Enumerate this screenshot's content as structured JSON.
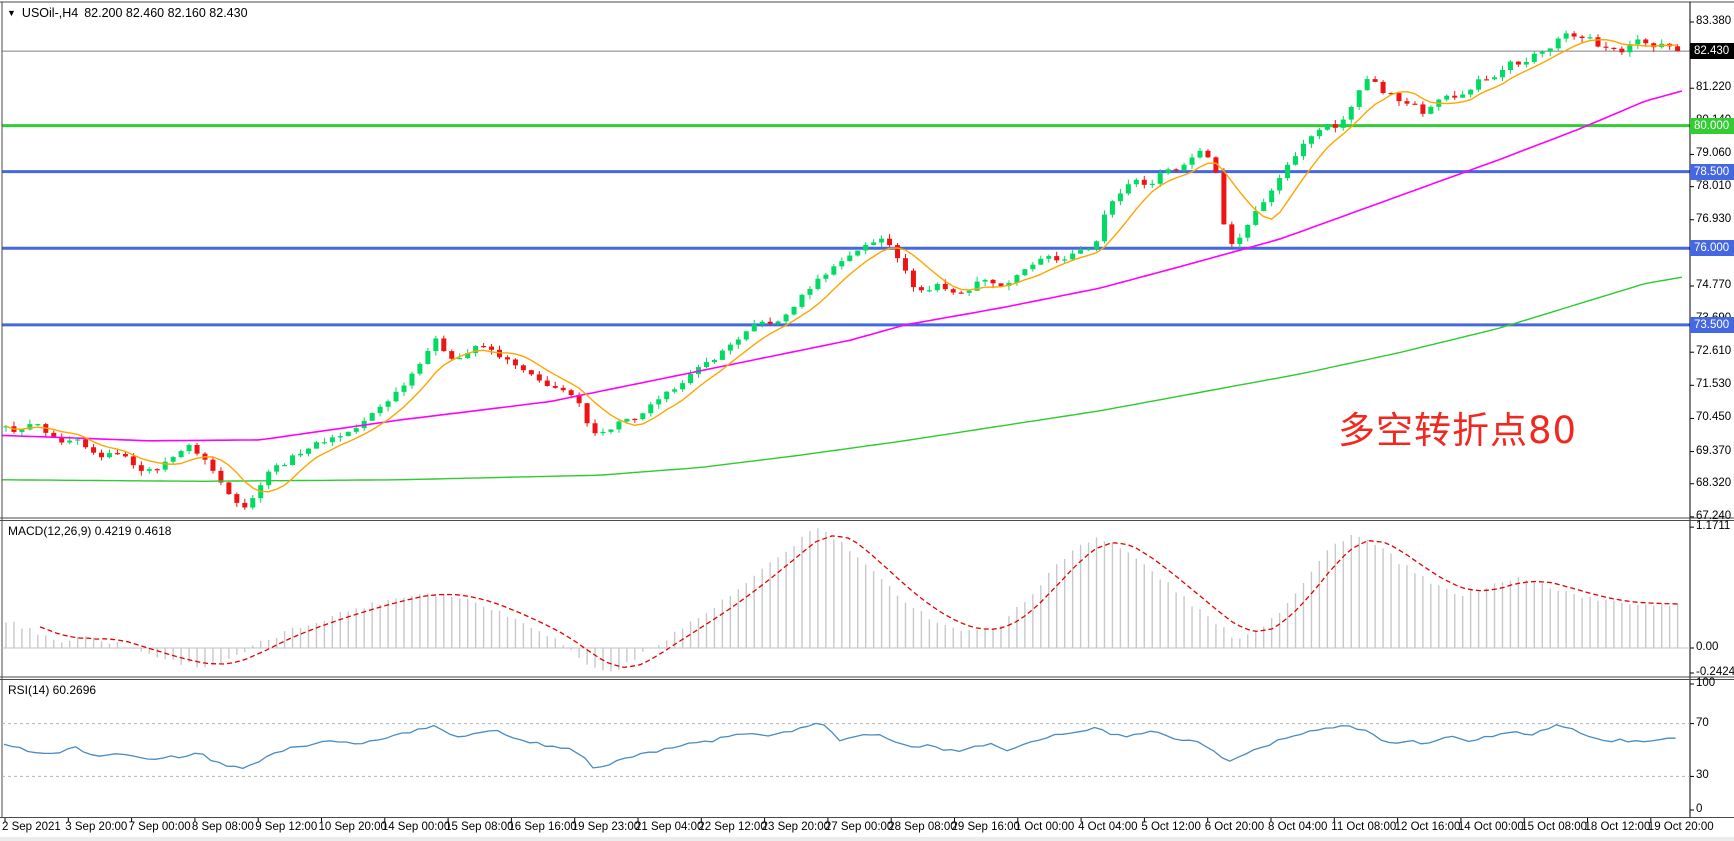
{
  "header": {
    "dropdown_icon": "▼",
    "title": "USOil-,H4",
    "ohlc": "82.200 82.460 82.160 82.430"
  },
  "annotation": {
    "text": "多空转折点80"
  },
  "chart_data": {
    "type": "candlestick",
    "symbol": "USOil",
    "timeframe": "H4",
    "ohlc_header": {
      "open": "82.200",
      "high": "82.460",
      "low": "82.160",
      "close": "82.430"
    },
    "price_axis_ticks": [
      "83.380",
      "82.300",
      "81.220",
      "80.140",
      "79.060",
      "78.010",
      "76.930",
      "75.850",
      "74.770",
      "73.690",
      "72.610",
      "71.530",
      "70.450",
      "69.370",
      "68.320",
      "67.240"
    ],
    "current_price": {
      "label": "82.430",
      "value": 82.43
    },
    "hlines": [
      {
        "label": "80.000",
        "value": 80.0,
        "color": "#33cc33"
      },
      {
        "label": "78.500",
        "value": 78.5,
        "color": "#4667e2"
      },
      {
        "label": "76.000",
        "value": 76.0,
        "color": "#4667e2"
      },
      {
        "label": "73.500",
        "value": 73.5,
        "color": "#4667e2"
      }
    ],
    "time_labels": [
      "2 Sep 2021",
      "3 Sep 20:00",
      "7 Sep 00:00",
      "8 Sep 08:00",
      "9 Sep 12:00",
      "10 Sep 20:00",
      "14 Sep 00:00",
      "15 Sep 08:00",
      "16 Sep 16:00",
      "19 Sep 23:00",
      "21 Sep 04:00",
      "22 Sep 12:00",
      "23 Sep 20:00",
      "27 Sep 00:00",
      "28 Sep 08:00",
      "29 Sep 16:00",
      "1 Oct 00:00",
      "4 Oct 04:00",
      "5 Oct 12:00",
      "6 Oct 20:00",
      "8 Oct 04:00",
      "11 Oct 08:00",
      "12 Oct 16:00",
      "14 Oct 00:00",
      "15 Oct 08:00",
      "18 Oct 12:00",
      "19 Oct 20:00"
    ],
    "price_path": [
      [
        6,
        70.15
      ],
      [
        20,
        70.0
      ],
      [
        34,
        70.35
      ],
      [
        48,
        69.9
      ],
      [
        62,
        69.6
      ],
      [
        76,
        69.75
      ],
      [
        90,
        69.35
      ],
      [
        104,
        69.2
      ],
      [
        118,
        69.35
      ],
      [
        132,
        69.0
      ],
      [
        146,
        68.7
      ],
      [
        160,
        68.85
      ],
      [
        175,
        69.3
      ],
      [
        190,
        69.55
      ],
      [
        205,
        69.1
      ],
      [
        220,
        68.4
      ],
      [
        235,
        67.8
      ],
      [
        248,
        67.5
      ],
      [
        258,
        68.2
      ],
      [
        270,
        68.8
      ],
      [
        285,
        69.0
      ],
      [
        300,
        69.35
      ],
      [
        315,
        69.6
      ],
      [
        330,
        69.8
      ],
      [
        345,
        69.95
      ],
      [
        360,
        70.2
      ],
      [
        375,
        70.7
      ],
      [
        390,
        71.1
      ],
      [
        402,
        71.5
      ],
      [
        414,
        72.0
      ],
      [
        426,
        72.6
      ],
      [
        436,
        73.0
      ],
      [
        446,
        72.6
      ],
      [
        456,
        72.35
      ],
      [
        468,
        72.6
      ],
      [
        480,
        72.85
      ],
      [
        492,
        72.65
      ],
      [
        504,
        72.4
      ],
      [
        516,
        72.15
      ],
      [
        528,
        71.9
      ],
      [
        540,
        71.65
      ],
      [
        552,
        71.5
      ],
      [
        564,
        71.3
      ],
      [
        576,
        71.1
      ],
      [
        588,
        70.3
      ],
      [
        598,
        69.9
      ],
      [
        610,
        70.1
      ],
      [
        622,
        70.4
      ],
      [
        634,
        70.35
      ],
      [
        646,
        70.75
      ],
      [
        658,
        71.0
      ],
      [
        670,
        71.35
      ],
      [
        682,
        71.65
      ],
      [
        694,
        71.95
      ],
      [
        706,
        72.25
      ],
      [
        718,
        72.5
      ],
      [
        730,
        72.85
      ],
      [
        742,
        73.15
      ],
      [
        754,
        73.45
      ],
      [
        766,
        73.65
      ],
      [
        776,
        73.5
      ],
      [
        788,
        73.9
      ],
      [
        800,
        74.35
      ],
      [
        812,
        74.8
      ],
      [
        824,
        75.15
      ],
      [
        836,
        75.45
      ],
      [
        848,
        75.75
      ],
      [
        860,
        76.0
      ],
      [
        872,
        76.15
      ],
      [
        882,
        76.35
      ],
      [
        892,
        76.1
      ],
      [
        904,
        75.3
      ],
      [
        914,
        74.75
      ],
      [
        926,
        74.55
      ],
      [
        938,
        74.85
      ],
      [
        950,
        74.6
      ],
      [
        962,
        74.5
      ],
      [
        974,
        74.8
      ],
      [
        986,
        75.05
      ],
      [
        998,
        74.75
      ],
      [
        1010,
        74.9
      ],
      [
        1022,
        75.2
      ],
      [
        1034,
        75.5
      ],
      [
        1046,
        75.7
      ],
      [
        1058,
        75.6
      ],
      [
        1070,
        75.75
      ],
      [
        1082,
        75.9
      ],
      [
        1094,
        76.1
      ],
      [
        1102,
        76.6
      ],
      [
        1108,
        77.9
      ],
      [
        1114,
        77.5
      ],
      [
        1122,
        77.85
      ],
      [
        1130,
        78.1
      ],
      [
        1138,
        78.3
      ],
      [
        1146,
        78.0
      ],
      [
        1154,
        78.2
      ],
      [
        1162,
        78.45
      ],
      [
        1170,
        78.7
      ],
      [
        1178,
        78.5
      ],
      [
        1186,
        78.8
      ],
      [
        1194,
        79.05
      ],
      [
        1202,
        79.25
      ],
      [
        1210,
        78.9
      ],
      [
        1218,
        78.35
      ],
      [
        1226,
        76.3
      ],
      [
        1234,
        76.05
      ],
      [
        1242,
        76.5
      ],
      [
        1250,
        76.9
      ],
      [
        1258,
        77.3
      ],
      [
        1266,
        77.6
      ],
      [
        1274,
        78.1
      ],
      [
        1282,
        78.45
      ],
      [
        1290,
        78.8
      ],
      [
        1298,
        79.15
      ],
      [
        1306,
        79.5
      ],
      [
        1314,
        79.75
      ],
      [
        1322,
        80.0
      ],
      [
        1330,
        80.15
      ],
      [
        1338,
        79.9
      ],
      [
        1346,
        80.3
      ],
      [
        1354,
        80.8
      ],
      [
        1362,
        81.3
      ],
      [
        1370,
        81.65
      ],
      [
        1378,
        81.35
      ],
      [
        1386,
        80.9
      ],
      [
        1394,
        81.1
      ],
      [
        1402,
        80.65
      ],
      [
        1410,
        80.85
      ],
      [
        1418,
        80.5
      ],
      [
        1426,
        80.35
      ],
      [
        1434,
        80.7
      ],
      [
        1442,
        80.95
      ],
      [
        1450,
        81.1
      ],
      [
        1458,
        80.9
      ],
      [
        1466,
        81.05
      ],
      [
        1474,
        81.3
      ],
      [
        1482,
        81.6
      ],
      [
        1490,
        81.45
      ],
      [
        1498,
        81.7
      ],
      [
        1506,
        81.95
      ],
      [
        1514,
        82.1
      ],
      [
        1522,
        81.9
      ],
      [
        1530,
        82.2
      ],
      [
        1538,
        82.45
      ],
      [
        1546,
        82.3
      ],
      [
        1554,
        82.6
      ],
      [
        1562,
        82.95
      ],
      [
        1570,
        83.05
      ],
      [
        1578,
        82.8
      ],
      [
        1586,
        83.0
      ],
      [
        1594,
        82.7
      ],
      [
        1602,
        82.45
      ],
      [
        1610,
        82.6
      ],
      [
        1618,
        82.35
      ],
      [
        1630,
        82.6
      ],
      [
        1640,
        82.9
      ],
      [
        1648,
        82.6
      ],
      [
        1656,
        82.5
      ],
      [
        1664,
        82.65
      ],
      [
        1672,
        82.5
      ],
      [
        1680,
        82.43
      ]
    ],
    "ma_mid_path": [
      [
        0,
        69.9
      ],
      [
        150,
        69.72
      ],
      [
        260,
        69.75
      ],
      [
        400,
        70.4
      ],
      [
        550,
        71.0
      ],
      [
        700,
        72.0
      ],
      [
        850,
        73.0
      ],
      [
        905,
        73.5
      ],
      [
        1000,
        74.05
      ],
      [
        1100,
        74.7
      ],
      [
        1180,
        75.4
      ],
      [
        1280,
        76.3
      ],
      [
        1390,
        77.6
      ],
      [
        1500,
        78.9
      ],
      [
        1580,
        79.9
      ],
      [
        1645,
        80.8
      ],
      [
        1690,
        81.2
      ]
    ],
    "ma_slow_path": [
      [
        0,
        68.45
      ],
      [
        200,
        68.4
      ],
      [
        400,
        68.45
      ],
      [
        600,
        68.6
      ],
      [
        700,
        68.85
      ],
      [
        800,
        69.25
      ],
      [
        900,
        69.7
      ],
      [
        1000,
        70.2
      ],
      [
        1100,
        70.7
      ],
      [
        1200,
        71.3
      ],
      [
        1300,
        71.9
      ],
      [
        1400,
        72.6
      ],
      [
        1500,
        73.4
      ],
      [
        1580,
        74.2
      ],
      [
        1645,
        74.85
      ],
      [
        1690,
        75.1
      ]
    ],
    "macd": {
      "label": "MACD(12,26,9) 0.4219 0.4618",
      "macd_value": 0.4219,
      "signal_value": 0.4618,
      "axis": [
        {
          "label": "1.1711",
          "v": 1.1711
        },
        {
          "label": "0.00",
          "v": 0
        },
        {
          "label": "-0.2424",
          "v": -0.2424
        }
      ],
      "path": [
        [
          0,
          0.28
        ],
        [
          30,
          0.18
        ],
        [
          60,
          0.06
        ],
        [
          90,
          0.12
        ],
        [
          120,
          0.03
        ],
        [
          150,
          -0.06
        ],
        [
          175,
          -0.13
        ],
        [
          205,
          -0.18
        ],
        [
          230,
          -0.12
        ],
        [
          255,
          0.02
        ],
        [
          285,
          0.15
        ],
        [
          320,
          0.27
        ],
        [
          355,
          0.38
        ],
        [
          390,
          0.47
        ],
        [
          425,
          0.54
        ],
        [
          455,
          0.5
        ],
        [
          485,
          0.42
        ],
        [
          510,
          0.3
        ],
        [
          540,
          0.18
        ],
        [
          565,
          0.02
        ],
        [
          585,
          -0.14
        ],
        [
          605,
          -0.24
        ],
        [
          625,
          -0.17
        ],
        [
          645,
          -0.04
        ],
        [
          670,
          0.12
        ],
        [
          700,
          0.3
        ],
        [
          730,
          0.5
        ],
        [
          760,
          0.73
        ],
        [
          790,
          0.97
        ],
        [
          815,
          1.17
        ],
        [
          832,
          1.08
        ],
        [
          852,
          0.93
        ],
        [
          876,
          0.7
        ],
        [
          900,
          0.5
        ],
        [
          925,
          0.32
        ],
        [
          950,
          0.2
        ],
        [
          975,
          0.15
        ],
        [
          1000,
          0.23
        ],
        [
          1025,
          0.45
        ],
        [
          1050,
          0.73
        ],
        [
          1075,
          0.97
        ],
        [
          1095,
          1.08
        ],
        [
          1115,
          1.0
        ],
        [
          1140,
          0.84
        ],
        [
          1165,
          0.64
        ],
        [
          1190,
          0.44
        ],
        [
          1215,
          0.24
        ],
        [
          1235,
          0.1
        ],
        [
          1255,
          0.16
        ],
        [
          1280,
          0.36
        ],
        [
          1305,
          0.66
        ],
        [
          1330,
          0.97
        ],
        [
          1350,
          1.1
        ],
        [
          1368,
          1.04
        ],
        [
          1390,
          0.9
        ],
        [
          1415,
          0.72
        ],
        [
          1440,
          0.58
        ],
        [
          1465,
          0.52
        ],
        [
          1490,
          0.6
        ],
        [
          1515,
          0.68
        ],
        [
          1540,
          0.62
        ],
        [
          1565,
          0.55
        ],
        [
          1590,
          0.48
        ],
        [
          1615,
          0.44
        ],
        [
          1645,
          0.43
        ],
        [
          1690,
          0.42
        ]
      ]
    },
    "rsi": {
      "label": "RSI(14) 60.2696",
      "value": 60.2696,
      "levels": [
        70,
        30
      ],
      "axis": [
        {
          "label": "100",
          "v": 100
        },
        {
          "label": "70",
          "v": 70
        },
        {
          "label": "30",
          "v": 30
        },
        {
          "label": "0",
          "v": 0
        }
      ],
      "path": [
        [
          0,
          54
        ],
        [
          25,
          50
        ],
        [
          50,
          47
        ],
        [
          75,
          52
        ],
        [
          100,
          45
        ],
        [
          125,
          48
        ],
        [
          150,
          42
        ],
        [
          175,
          45
        ],
        [
          200,
          47
        ],
        [
          225,
          38
        ],
        [
          245,
          35
        ],
        [
          265,
          45
        ],
        [
          290,
          52
        ],
        [
          315,
          55
        ],
        [
          340,
          57
        ],
        [
          365,
          55
        ],
        [
          390,
          60
        ],
        [
          415,
          65
        ],
        [
          435,
          69
        ],
        [
          455,
          60
        ],
        [
          475,
          63
        ],
        [
          495,
          65
        ],
        [
          515,
          58
        ],
        [
          535,
          55
        ],
        [
          555,
          52
        ],
        [
          575,
          50
        ],
        [
          595,
          36
        ],
        [
          610,
          40
        ],
        [
          630,
          45
        ],
        [
          650,
          48
        ],
        [
          670,
          52
        ],
        [
          690,
          55
        ],
        [
          710,
          57
        ],
        [
          730,
          60
        ],
        [
          750,
          62
        ],
        [
          770,
          60
        ],
        [
          790,
          64
        ],
        [
          815,
          71
        ],
        [
          825,
          68
        ],
        [
          840,
          58
        ],
        [
          855,
          60
        ],
        [
          870,
          62
        ],
        [
          885,
          60
        ],
        [
          900,
          55
        ],
        [
          915,
          52
        ],
        [
          930,
          54
        ],
        [
          945,
          50
        ],
        [
          960,
          48
        ],
        [
          975,
          52
        ],
        [
          990,
          55
        ],
        [
          1005,
          50
        ],
        [
          1020,
          54
        ],
        [
          1035,
          58
        ],
        [
          1050,
          60
        ],
        [
          1065,
          62
        ],
        [
          1080,
          65
        ],
        [
          1095,
          66
        ],
        [
          1110,
          63
        ],
        [
          1125,
          60
        ],
        [
          1140,
          62
        ],
        [
          1155,
          64
        ],
        [
          1170,
          60
        ],
        [
          1185,
          58
        ],
        [
          1200,
          55
        ],
        [
          1215,
          48
        ],
        [
          1228,
          42
        ],
        [
          1245,
          46
        ],
        [
          1260,
          52
        ],
        [
          1275,
          56
        ],
        [
          1290,
          60
        ],
        [
          1305,
          63
        ],
        [
          1320,
          66
        ],
        [
          1335,
          68
        ],
        [
          1350,
          67
        ],
        [
          1365,
          64
        ],
        [
          1380,
          58
        ],
        [
          1395,
          55
        ],
        [
          1410,
          57
        ],
        [
          1425,
          54
        ],
        [
          1440,
          58
        ],
        [
          1455,
          60
        ],
        [
          1470,
          57
        ],
        [
          1485,
          60
        ],
        [
          1500,
          62
        ],
        [
          1515,
          64
        ],
        [
          1530,
          62
        ],
        [
          1545,
          65
        ],
        [
          1560,
          69
        ],
        [
          1575,
          66
        ],
        [
          1590,
          60
        ],
        [
          1605,
          56
        ],
        [
          1620,
          58
        ],
        [
          1640,
          56
        ],
        [
          1655,
          58
        ],
        [
          1670,
          59
        ],
        [
          1685,
          60.3
        ]
      ]
    },
    "colors": {
      "bull": "#00db61",
      "bear": "#ef1414",
      "ma_fast": "#ffa500",
      "ma_mid": "#ff00ff",
      "ma_slow": "#2fca2f",
      "macd_hist": "#c8c8c8",
      "macd_signal": "#e60000",
      "macd_zero": "#c0c0c0",
      "rsi_line": "#4a8bc2",
      "rsi_level": "#b4b4b4",
      "current_line": "#808080",
      "current_badge_bg": "#000000",
      "level_green": "#33cc33",
      "level_blue": "#4667e2",
      "annotation": "#f2281e",
      "border": "#4a4a4a"
    }
  }
}
